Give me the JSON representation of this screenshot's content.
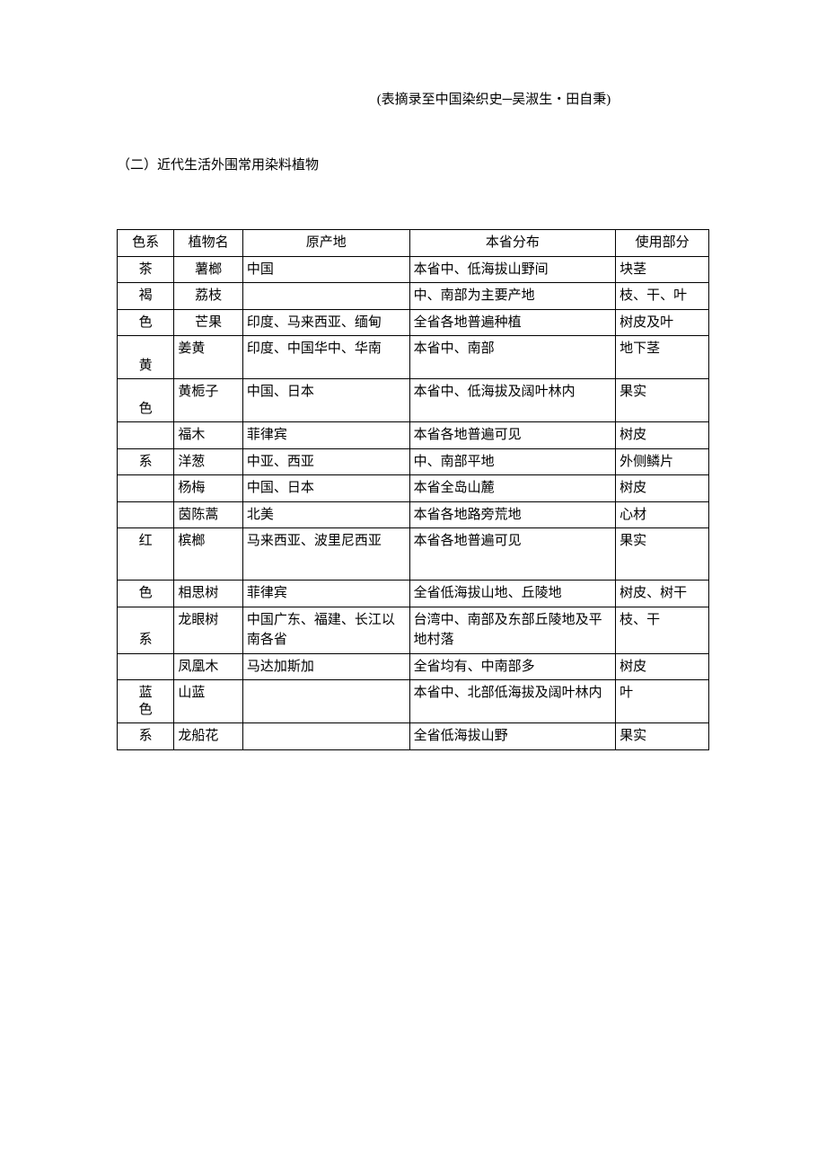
{
  "source_note": "(表摘录至中国染织史─吴淑生・田自秉)",
  "section_heading": "（二）近代生活外围常用染料植物",
  "headers": {
    "color": "色系",
    "plant": "植物名",
    "origin": "原产地",
    "distribution": "本省分布",
    "part": "使用部分"
  },
  "rows": [
    {
      "color": "茶",
      "plant": "薯榔",
      "plant_center": true,
      "origin": "中国",
      "dist": "本省中、低海拔山野间",
      "part": "块茎"
    },
    {
      "color": "褐",
      "plant": "荔枝",
      "plant_center": true,
      "origin": "",
      "dist": "中、南部为主要产地",
      "part": "枝、干、叶"
    },
    {
      "color": "色",
      "plant": "芒果",
      "plant_center": true,
      "origin": "印度、马来西亚、缅甸",
      "dist": "全省各地普遍种植",
      "part": "树皮及叶"
    },
    {
      "color": "",
      "plant": "姜黄",
      "origin": "印度、中国华中、华南",
      "dist": "本省中、南部",
      "part": "地下茎",
      "tall": true,
      "color_bottom": "黄"
    },
    {
      "color": "",
      "plant": "黄栀子",
      "origin": "中国、日本",
      "dist": "本省中、低海拔及阔叶林内",
      "part": "果实",
      "tall": true,
      "color_bottom": "色"
    },
    {
      "color": "",
      "plant": "福木",
      "origin": "菲律宾",
      "dist": "本省各地普遍可见",
      "part": "树皮"
    },
    {
      "color": "系",
      "plant": "洋葱",
      "origin": "中亚、西亚",
      "dist": "中、南部平地",
      "part": "外侧鳞片"
    },
    {
      "color": "",
      "plant": "杨梅",
      "origin": "中国、日本",
      "dist": "本省全岛山麓",
      "part": "树皮"
    },
    {
      "color": "",
      "plant": "茵陈蒿",
      "origin": "北美",
      "dist": "本省各地路旁荒地",
      "part": "心材"
    },
    {
      "color": "红",
      "plant": "槟榔",
      "origin": "马来西亚、波里尼西亚",
      "dist": "本省各地普遍可见",
      "part": "果实",
      "extra_tall": true
    },
    {
      "color": "色",
      "plant": "相思树",
      "origin": "菲律宾",
      "dist": "全省低海拔山地、丘陵地",
      "part": "树皮、树干"
    },
    {
      "color": "",
      "plant": "龙眼树",
      "origin": "中国广东、福建、长江以南各省",
      "dist": "台湾中、南部及东部丘陵地及平地村落",
      "part": "枝、干",
      "tall": true,
      "color_bottom": "系"
    },
    {
      "color": "",
      "plant": "凤凰木",
      "origin": "马达加斯加",
      "dist": "全省均有、中南部多",
      "part": "树皮"
    },
    {
      "color": "蓝",
      "plant": "山蓝",
      "origin": "",
      "dist": "本省中、北部低海拔及阔叶林内",
      "part": "叶",
      "tall": true,
      "color_bottom": "色"
    },
    {
      "color": "系",
      "plant": "龙船花",
      "origin": "",
      "dist": "全省低海拔山野",
      "part": "果实"
    }
  ]
}
